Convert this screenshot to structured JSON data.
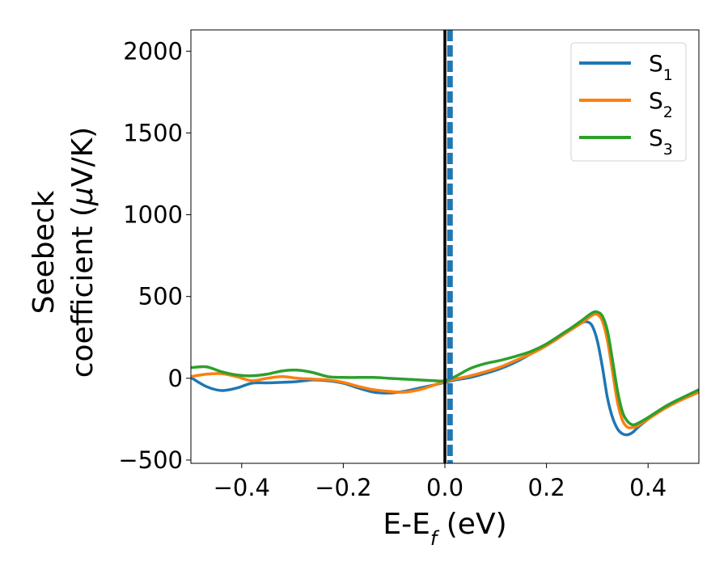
{
  "chart_data": {
    "type": "line",
    "xlabel": {
      "main": "E-E",
      "sub": "f",
      "unit": " (eV)"
    },
    "ylabel": {
      "line1": "Seebeck",
      "line2_text": "coefficient  (",
      "line2_mu": "μ",
      "line2_unit": "V/K)"
    },
    "xlim": [
      -0.5,
      0.5
    ],
    "ylim": [
      -520,
      2130
    ],
    "xticks": [
      -0.4,
      -0.2,
      0.0,
      0.2,
      0.4
    ],
    "xtick_labels": [
      "−0.4",
      "−0.2",
      "0.0",
      "0.2",
      "0.4"
    ],
    "yticks": [
      -500,
      0,
      500,
      1000,
      1500,
      2000
    ],
    "ytick_labels": [
      "−500",
      "0",
      "500",
      "1000",
      "1500",
      "2000"
    ],
    "grid": false,
    "legend_placement": "top-right",
    "vlines": [
      {
        "x": 0.0,
        "style": "solid",
        "color": "#000000"
      },
      {
        "x": 0.01,
        "style": "dashed",
        "color": "#1f77b4"
      }
    ],
    "series": [
      {
        "name": "S",
        "sub": "1",
        "color": "#1f77b4",
        "x": [
          -0.5,
          -0.47,
          -0.44,
          -0.41,
          -0.38,
          -0.35,
          -0.32,
          -0.29,
          -0.26,
          -0.23,
          -0.2,
          -0.17,
          -0.14,
          -0.11,
          -0.08,
          -0.05,
          -0.02,
          0.0,
          0.02,
          0.05,
          0.08,
          0.11,
          0.14,
          0.17,
          0.2,
          0.23,
          0.25,
          0.27,
          0.28,
          0.29,
          0.3,
          0.31,
          0.32,
          0.33,
          0.34,
          0.35,
          0.36,
          0.37,
          0.38,
          0.4,
          0.43,
          0.46,
          0.5
        ],
        "y": [
          5,
          -50,
          -75,
          -60,
          -30,
          -28,
          -25,
          -20,
          -10,
          -15,
          -30,
          -60,
          -85,
          -90,
          -80,
          -60,
          -40,
          -25,
          -10,
          5,
          30,
          60,
          100,
          150,
          200,
          260,
          310,
          340,
          345,
          320,
          230,
          70,
          -120,
          -240,
          -310,
          -340,
          -345,
          -330,
          -300,
          -250,
          -180,
          -130,
          -75
        ]
      },
      {
        "name": "S",
        "sub": "2",
        "color": "#ff7f0e",
        "x": [
          -0.5,
          -0.47,
          -0.44,
          -0.41,
          -0.38,
          -0.35,
          -0.32,
          -0.29,
          -0.26,
          -0.23,
          -0.2,
          -0.17,
          -0.14,
          -0.11,
          -0.08,
          -0.05,
          -0.02,
          0.0,
          0.02,
          0.05,
          0.08,
          0.11,
          0.14,
          0.17,
          0.2,
          0.23,
          0.25,
          0.27,
          0.29,
          0.3,
          0.31,
          0.32,
          0.33,
          0.34,
          0.35,
          0.36,
          0.37,
          0.38,
          0.4,
          0.43,
          0.46,
          0.5
        ],
        "y": [
          10,
          25,
          28,
          10,
          -15,
          0,
          10,
          0,
          -5,
          -10,
          -25,
          -50,
          -70,
          -80,
          -85,
          -70,
          -40,
          -20,
          -5,
          15,
          40,
          70,
          110,
          150,
          200,
          260,
          300,
          340,
          385,
          390,
          350,
          230,
          40,
          -150,
          -260,
          -300,
          -300,
          -290,
          -250,
          -190,
          -140,
          -85
        ]
      },
      {
        "name": "S",
        "sub": "3",
        "color": "#2ca02c",
        "x": [
          -0.5,
          -0.47,
          -0.44,
          -0.41,
          -0.38,
          -0.35,
          -0.32,
          -0.29,
          -0.26,
          -0.23,
          -0.2,
          -0.17,
          -0.14,
          -0.11,
          -0.08,
          -0.05,
          -0.02,
          0.0,
          0.02,
          0.05,
          0.08,
          0.11,
          0.14,
          0.17,
          0.2,
          0.23,
          0.25,
          0.27,
          0.29,
          0.3,
          0.31,
          0.32,
          0.33,
          0.34,
          0.35,
          0.36,
          0.37,
          0.38,
          0.4,
          0.43,
          0.46,
          0.5
        ],
        "y": [
          65,
          70,
          40,
          20,
          15,
          25,
          45,
          50,
          35,
          10,
          5,
          5,
          5,
          0,
          -5,
          -10,
          -15,
          -15,
          10,
          60,
          90,
          110,
          135,
          165,
          210,
          270,
          310,
          355,
          400,
          405,
          380,
          290,
          110,
          -80,
          -210,
          -265,
          -285,
          -275,
          -240,
          -180,
          -130,
          -70
        ]
      }
    ]
  }
}
